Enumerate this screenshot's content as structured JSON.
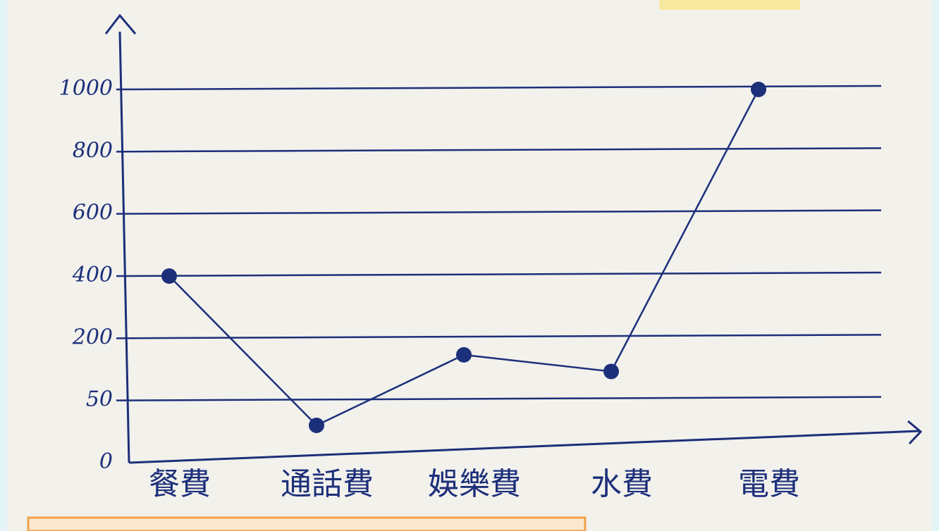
{
  "chart_data": {
    "type": "line",
    "categories": [
      "餐費",
      "通話費",
      "娛樂費",
      "水費",
      "電費"
    ],
    "values": [
      400,
      30,
      160,
      120,
      1000
    ],
    "color": "#1c2f7a",
    "ylim": [
      0,
      1000
    ],
    "yticks": [
      0,
      50,
      200,
      400,
      600,
      800,
      1000
    ],
    "grid": true
  }
}
